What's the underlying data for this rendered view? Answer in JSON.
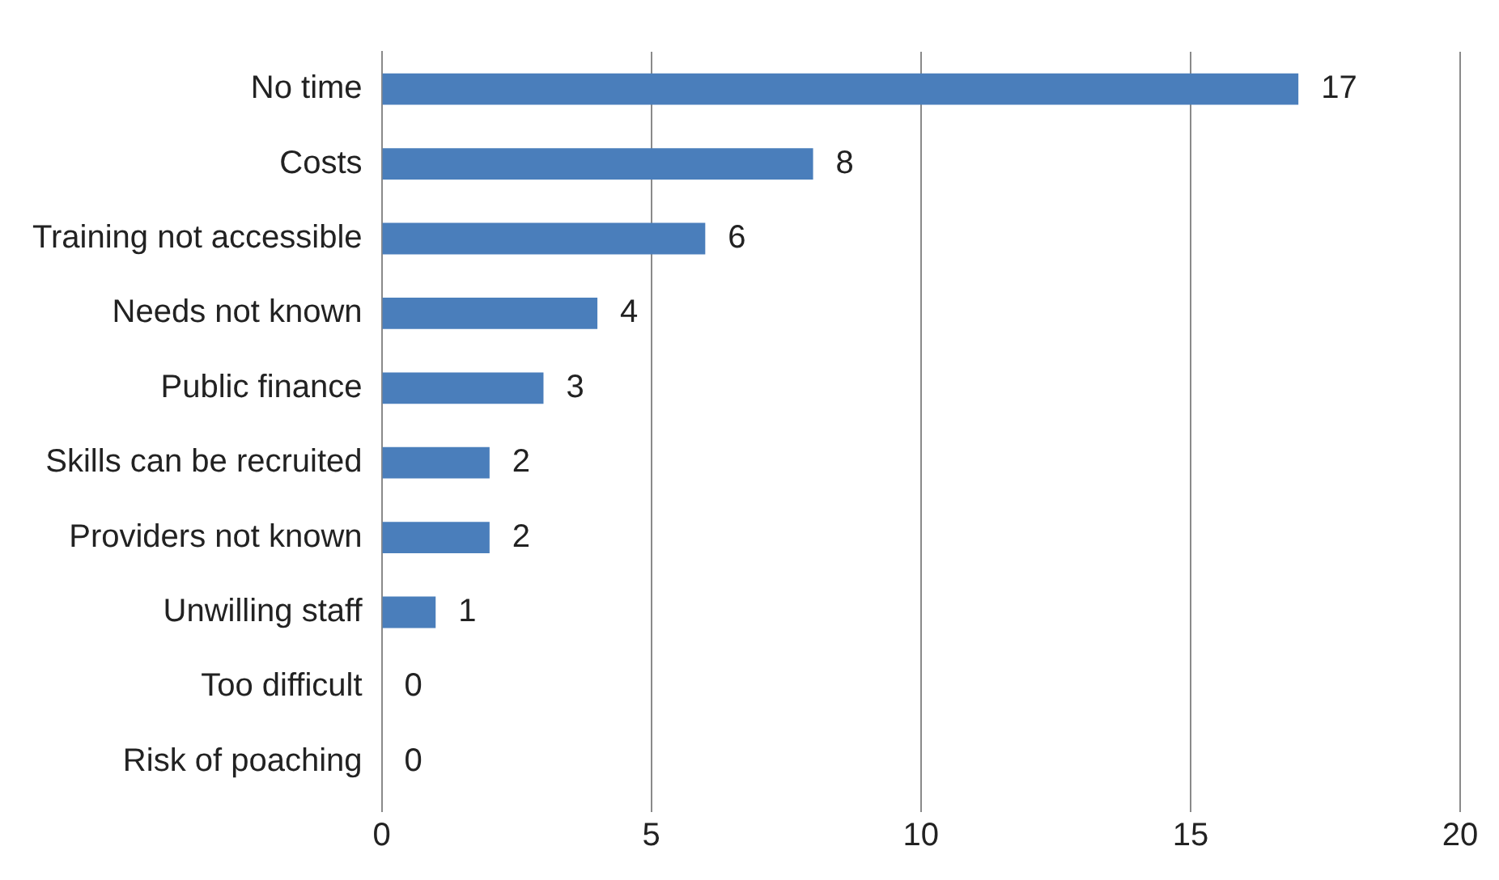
{
  "chart_data": {
    "type": "bar",
    "orientation": "horizontal",
    "categories": [
      "No time",
      "Costs",
      "Training not accessible",
      "Needs not known",
      "Public finance",
      "Skills can be recruited",
      "Providers not known",
      "Unwilling staff",
      "Too difficult",
      "Risk of poaching"
    ],
    "values": [
      17,
      8,
      6,
      4,
      3,
      2,
      2,
      1,
      0,
      0
    ],
    "color": "#4a7ebb",
    "xlim": [
      0,
      20
    ],
    "xticks": [
      0,
      5,
      10,
      15,
      20
    ],
    "grid": "x",
    "data_labels": true,
    "legend": false
  }
}
